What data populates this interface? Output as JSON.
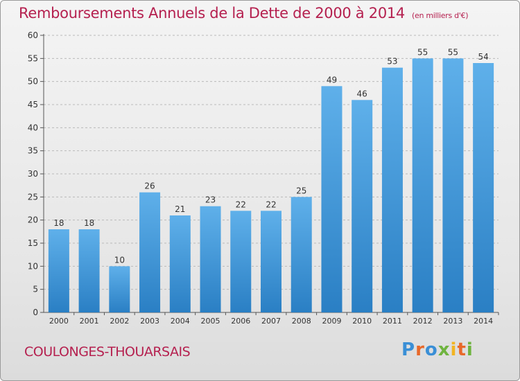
{
  "header": {
    "title": "Remboursements Annuels de la Dette de 2000 à 2014",
    "subtitle": "(en milliers d'€)"
  },
  "footer": {
    "commune": "COULONGES-THOUARSAIS",
    "logo": "Proxiti"
  },
  "colors": {
    "bar_light": "#5fb0ea",
    "bar_dark": "#2a7fc4",
    "title": "#b5204f"
  },
  "chart_data": {
    "type": "bar",
    "categories": [
      "2000",
      "2001",
      "2002",
      "2003",
      "2004",
      "2005",
      "2006",
      "2007",
      "2008",
      "2009",
      "2010",
      "2011",
      "2012",
      "2013",
      "2014"
    ],
    "values": [
      18,
      18,
      10,
      26,
      21,
      23,
      22,
      22,
      25,
      49,
      46,
      53,
      55,
      55,
      54
    ],
    "title": "Remboursements Annuels de la Dette de 2000 à 2014",
    "ylim": [
      0,
      60
    ],
    "yticks": [
      0,
      5,
      10,
      15,
      20,
      25,
      30,
      35,
      40,
      45,
      50,
      55,
      60
    ],
    "grid": true,
    "legend": "none",
    "data_labels": true
  }
}
